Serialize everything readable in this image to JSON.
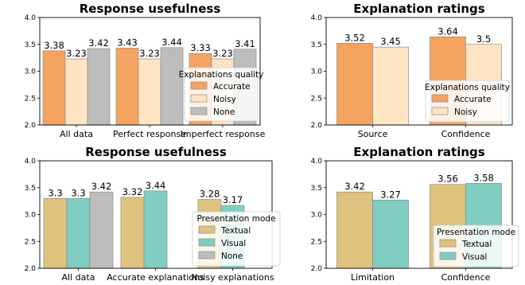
{
  "colors": {
    "Accurate": "#f4a460",
    "Noisy": "#ffe4c4",
    "None": "#bdbdbd",
    "Textual": "#dfc27d",
    "Visual": "#80cdc1"
  },
  "chart_data": [
    {
      "type": "bar",
      "title": "Response usefulness",
      "categories": [
        "All data",
        "Perfect response",
        "Imperfect response"
      ],
      "series": [
        {
          "name": "Accurate",
          "values": [
            3.38,
            3.43,
            3.33
          ]
        },
        {
          "name": "Noisy",
          "values": [
            3.23,
            3.23,
            3.23
          ]
        },
        {
          "name": "None",
          "values": [
            3.42,
            3.44,
            3.41
          ]
        }
      ],
      "ylim": [
        2.0,
        4.0
      ],
      "yticks": [
        "2.0",
        "2.5",
        "3.0",
        "3.5",
        "4.0"
      ],
      "legend_title": "Explanations quality",
      "legend_placement": "center-right"
    },
    {
      "type": "bar",
      "title": "Explanation ratings",
      "categories": [
        "Source",
        "Confidence"
      ],
      "series": [
        {
          "name": "Accurate",
          "values": [
            3.52,
            3.64
          ]
        },
        {
          "name": "Noisy",
          "values": [
            3.45,
            3.5
          ]
        }
      ],
      "ylim": [
        2.0,
        4.0
      ],
      "yticks": [
        "2.0",
        "2.5",
        "3.0",
        "3.5",
        "4.0"
      ],
      "legend_title": "Explanations quality",
      "legend_placement": "center-right"
    },
    {
      "type": "bar",
      "title": "Response usefulness",
      "categories": [
        "All data",
        "Accurate explanations",
        "Noisy explanations"
      ],
      "series": [
        {
          "name": "Textual",
          "values": [
            3.3,
            3.32,
            3.28
          ]
        },
        {
          "name": "Visual",
          "values": [
            3.3,
            3.44,
            3.17
          ]
        },
        {
          "name": "None",
          "values": [
            3.42,
            null,
            null
          ]
        }
      ],
      "ylim": [
        2.0,
        4.0
      ],
      "yticks": [
        "2.0",
        "2.5",
        "3.0",
        "3.5",
        "4.0"
      ],
      "legend_title": "Presentation mode",
      "legend_placement": "lower-right"
    },
    {
      "type": "bar",
      "title": "Explanation ratings",
      "categories": [
        "Limitation",
        "Confidence"
      ],
      "series": [
        {
          "name": "Textual",
          "values": [
            3.42,
            3.56
          ]
        },
        {
          "name": "Visual",
          "values": [
            3.27,
            3.58
          ]
        }
      ],
      "ylim": [
        2.0,
        4.0
      ],
      "yticks": [
        "2.0",
        "2.5",
        "3.0",
        "3.5",
        "4.0"
      ],
      "legend_title": "Presentation mode",
      "legend_placement": "lower-right"
    }
  ]
}
